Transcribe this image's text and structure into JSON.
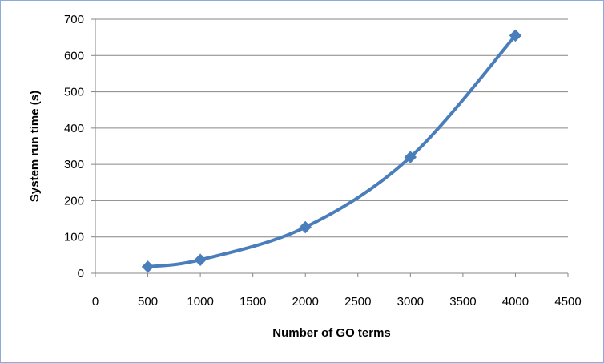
{
  "chart_data": {
    "type": "line",
    "title": "",
    "xlabel": "Number of GO terms",
    "ylabel": "System run time (s)",
    "xlim": [
      0,
      4500
    ],
    "ylim": [
      0,
      700
    ],
    "xticks": [
      0,
      500,
      1000,
      1500,
      2000,
      2500,
      3000,
      3500,
      4000,
      4500
    ],
    "yticks": [
      0,
      100,
      200,
      300,
      400,
      500,
      600,
      700
    ],
    "grid": {
      "horizontal": true,
      "vertical": false
    },
    "legend": "none",
    "smooth": true,
    "marker": "diamond",
    "series": [
      {
        "color": "#4a7ebb",
        "x": [
          500,
          1000,
          2000,
          3000,
          4000
        ],
        "y": [
          18,
          37,
          127,
          320,
          655
        ]
      }
    ]
  }
}
